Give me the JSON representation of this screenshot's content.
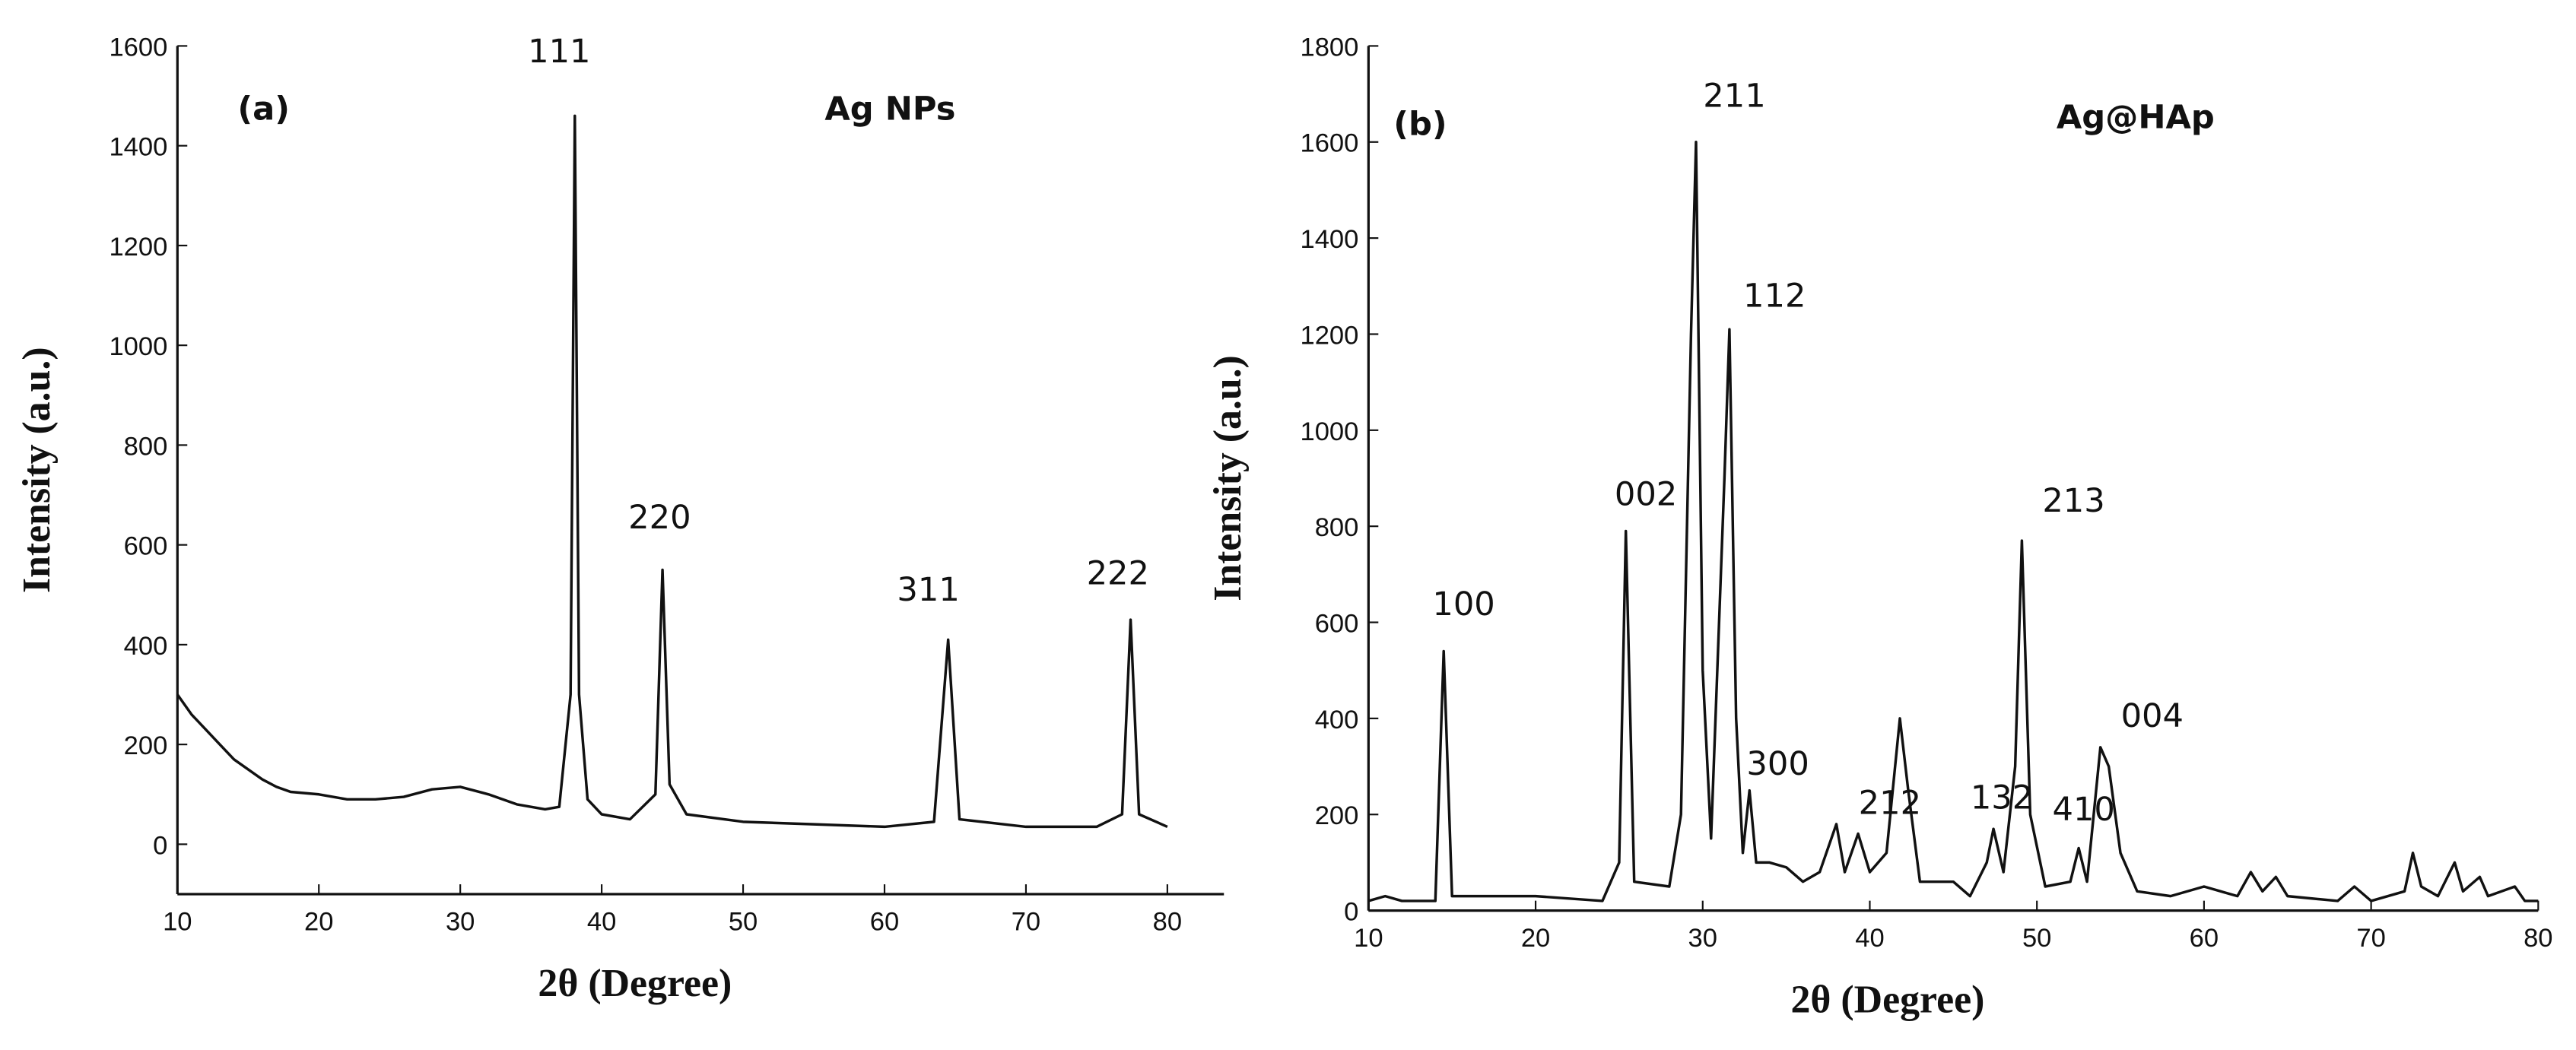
{
  "chart_data": [
    {
      "type": "line",
      "xlabel": "2θ (Degree)",
      "ylabel": "Intensity (a.u.)",
      "xlim": [
        10,
        84
      ],
      "ylim": [
        -100,
        1600
      ],
      "xticks": [
        10,
        20,
        30,
        40,
        50,
        60,
        70,
        80
      ],
      "yticks": [
        0,
        200,
        400,
        600,
        800,
        1000,
        1200,
        1400,
        1600
      ],
      "series": [
        {
          "color": "#111111",
          "x": [
            10,
            11,
            12,
            13,
            14,
            15,
            16,
            17,
            18,
            20,
            22,
            24,
            26,
            28,
            30,
            32,
            34,
            36,
            37,
            37.8,
            38.1,
            38.4,
            39,
            40,
            42,
            43.8,
            44.3,
            44.8,
            46,
            50,
            55,
            60,
            63.5,
            64.5,
            65.3,
            70,
            75,
            76.8,
            77.4,
            78,
            80
          ],
          "values": [
            300,
            260,
            230,
            200,
            170,
            150,
            130,
            115,
            105,
            100,
            90,
            90,
            95,
            110,
            115,
            100,
            80,
            70,
            75,
            300,
            1460,
            300,
            90,
            60,
            50,
            100,
            550,
            120,
            60,
            45,
            40,
            35,
            45,
            410,
            50,
            35,
            35,
            60,
            450,
            60,
            35
          ]
        }
      ],
      "annotations": [
        {
          "text": "(a)",
          "x": 16.1,
          "y": 1452
        },
        {
          "text": "Ag NPs",
          "x": 60.4,
          "y": 1452
        },
        {
          "text": "111",
          "x": 37.0,
          "y": 1567
        },
        {
          "text": "220",
          "x": 44.1,
          "y": 633
        },
        {
          "text": "311",
          "x": 63.1,
          "y": 488
        },
        {
          "text": "222",
          "x": 76.5,
          "y": 521
        }
      ]
    },
    {
      "type": "line",
      "xlabel": "2θ (Degree)",
      "ylabel": "Intensity (a.u.)",
      "xlim": [
        10,
        80
      ],
      "ylim": [
        0,
        1800
      ],
      "xticks": [
        10,
        20,
        30,
        40,
        50,
        60,
        70,
        80
      ],
      "yticks": [
        0,
        200,
        400,
        600,
        800,
        1000,
        1200,
        1400,
        1600,
        1800
      ],
      "series": [
        {
          "color": "#111111",
          "x": [
            10,
            11,
            12,
            14,
            14.5,
            15,
            20,
            24,
            25,
            25.4,
            25.9,
            28,
            28.7,
            29.3,
            29.6,
            30,
            30.5,
            31.3,
            31.6,
            32,
            32.4,
            32.8,
            33.2,
            34,
            35,
            36,
            37,
            38,
            38.5,
            39.3,
            40,
            41,
            41.8,
            42.3,
            43,
            45,
            46,
            47,
            47.4,
            48,
            48.7,
            49.1,
            49.6,
            50.5,
            52,
            52.5,
            53,
            53.8,
            54.3,
            55,
            56,
            58,
            60,
            62,
            62.8,
            63.5,
            64.3,
            65,
            68,
            69,
            70,
            72,
            72.5,
            73,
            74,
            75,
            75.5,
            76.5,
            77,
            78.6,
            79.2,
            80
          ],
          "values": [
            20,
            30,
            20,
            20,
            540,
            30,
            30,
            20,
            100,
            790,
            60,
            50,
            200,
            1200,
            1600,
            500,
            150,
            900,
            1210,
            400,
            120,
            250,
            100,
            100,
            90,
            60,
            80,
            180,
            80,
            160,
            80,
            120,
            400,
            250,
            60,
            60,
            30,
            100,
            170,
            80,
            300,
            770,
            200,
            50,
            60,
            130,
            60,
            340,
            300,
            120,
            40,
            30,
            50,
            30,
            80,
            40,
            70,
            30,
            20,
            50,
            20,
            40,
            120,
            50,
            30,
            100,
            40,
            70,
            30,
            50,
            20,
            20
          ]
        }
      ],
      "annotations": [
        {
          "text": "(b)",
          "x": 13.1,
          "y": 1615
        },
        {
          "text": "Ag@HAp",
          "x": 55.9,
          "y": 1629
        },
        {
          "text": "100",
          "x": 15.7,
          "y": 615
        },
        {
          "text": "002",
          "x": 26.6,
          "y": 844
        },
        {
          "text": "211",
          "x": 31.9,
          "y": 1673
        },
        {
          "text": "112",
          "x": 34.3,
          "y": 1257
        },
        {
          "text": "300",
          "x": 34.5,
          "y": 283
        },
        {
          "text": "212",
          "x": 41.2,
          "y": 201
        },
        {
          "text": "132",
          "x": 47.9,
          "y": 212
        },
        {
          "text": "410",
          "x": 52.8,
          "y": 188
        },
        {
          "text": "004",
          "x": 56.9,
          "y": 382
        },
        {
          "text": "213",
          "x": 52.2,
          "y": 830
        }
      ]
    }
  ]
}
